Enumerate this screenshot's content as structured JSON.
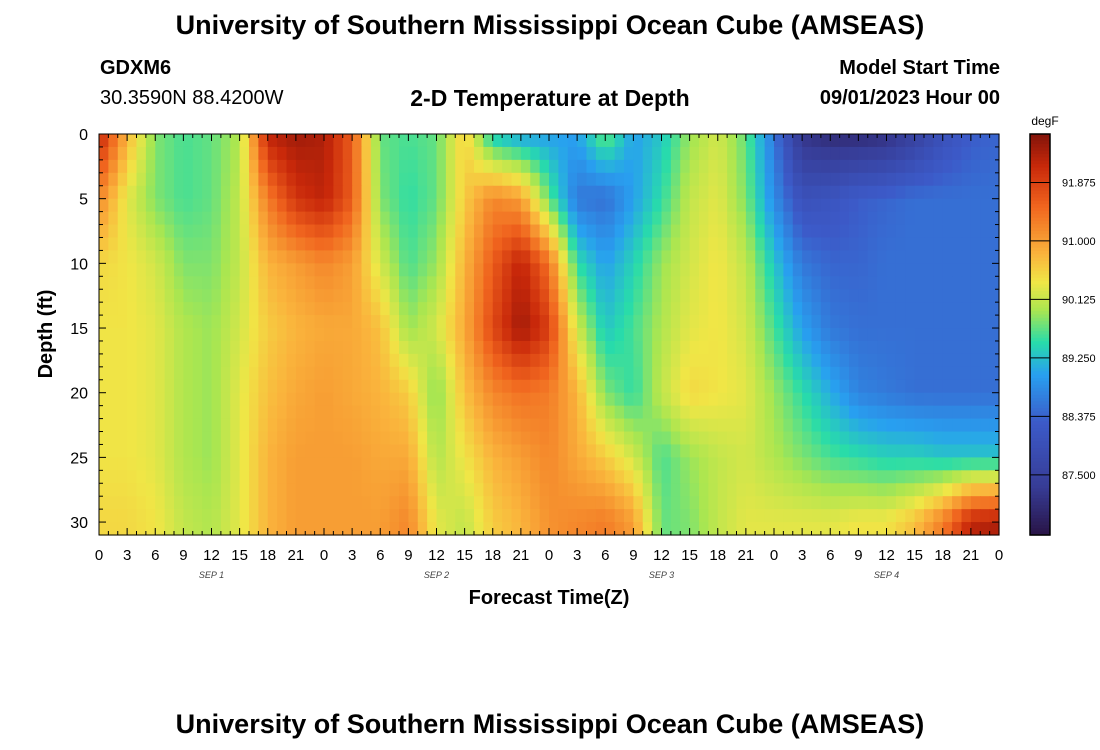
{
  "header": {
    "title": "University of Southern Mississippi Ocean Cube (AMSEAS)",
    "station": "GDXM6",
    "coords": "30.3590N  88.4200W",
    "subtitle": "2-D Temperature at Depth",
    "start_label": "Model Start Time",
    "start_value": "09/01/2023 Hour 00"
  },
  "footer": {
    "title": "University of Southern Mississippi Ocean Cube (AMSEAS)"
  },
  "chart_data": {
    "type": "heatmap",
    "xlabel": "Forecast Time(Z)",
    "ylabel": "Depth (ft)",
    "x_unit": "forecast hour",
    "xlim": [
      0,
      96
    ],
    "ylim": [
      31,
      0
    ],
    "x_tick_labels": [
      "0",
      "3",
      "6",
      "9",
      "12",
      "15",
      "18",
      "21",
      "0",
      "3",
      "6",
      "9",
      "12",
      "15",
      "18",
      "21",
      "0",
      "3",
      "6",
      "9",
      "12",
      "15",
      "18",
      "21",
      "0",
      "3",
      "6",
      "9",
      "12",
      "15",
      "18",
      "21",
      "0"
    ],
    "day_labels": [
      "SEP 1",
      "SEP 2",
      "SEP 3",
      "SEP 4"
    ],
    "y_ticks": [
      0,
      5,
      10,
      15,
      20,
      25,
      30
    ],
    "colorbar": {
      "unit": "degF",
      "range": [
        86.6,
        92.6
      ],
      "labels": [
        "91.875",
        "91.000",
        "90.125",
        "89.250",
        "88.375",
        "87.500"
      ]
    },
    "depths": [
      0,
      5,
      10,
      15,
      20,
      25,
      30
    ],
    "hours": [
      0,
      3,
      6,
      9,
      12,
      15,
      18,
      21,
      24,
      27,
      30,
      33,
      36,
      39,
      42,
      45,
      48,
      51,
      54,
      57,
      60,
      63,
      66,
      69,
      72,
      75,
      78,
      81,
      84,
      87,
      90,
      93,
      96
    ],
    "temperature": [
      [
        92.2,
        90.8,
        89.8,
        89.6,
        89.7,
        90.0,
        92.2,
        92.4,
        92.3,
        91.6,
        89.7,
        89.6,
        89.7,
        90.6,
        89.3,
        89.0,
        89.0,
        89.0,
        89.8,
        89.0,
        89.3,
        89.9,
        90.2,
        89.7,
        88.6,
        87.2,
        87.0,
        87.0,
        87.1,
        87.5,
        88.0,
        88.3,
        88.4
      ],
      [
        91.2,
        90.3,
        89.8,
        89.6,
        89.7,
        90.1,
        91.3,
        92.0,
        92.2,
        91.6,
        89.8,
        89.5,
        89.7,
        90.6,
        91.2,
        91.0,
        89.7,
        88.6,
        88.5,
        89.0,
        89.5,
        90.1,
        90.3,
        89.8,
        88.8,
        88.0,
        88.1,
        88.3,
        88.4,
        88.5,
        88.5,
        88.5,
        88.5
      ],
      [
        90.5,
        90.4,
        90.2,
        89.8,
        89.8,
        90.1,
        90.8,
        91.0,
        91.2,
        91.0,
        90.2,
        89.6,
        89.9,
        90.8,
        91.6,
        92.2,
        91.4,
        89.5,
        89.0,
        89.4,
        89.9,
        90.2,
        90.4,
        90.1,
        89.3,
        88.6,
        88.4,
        88.4,
        88.5,
        88.5,
        88.5,
        88.5,
        88.5
      ],
      [
        90.4,
        90.4,
        90.3,
        90.0,
        89.9,
        90.2,
        90.6,
        90.8,
        90.9,
        90.9,
        90.7,
        89.9,
        90.2,
        90.9,
        91.8,
        92.4,
        91.9,
        90.2,
        89.3,
        89.6,
        90.0,
        90.3,
        90.4,
        90.2,
        89.6,
        89.0,
        88.6,
        88.5,
        88.5,
        88.5,
        88.5,
        88.5,
        88.5
      ],
      [
        90.4,
        90.4,
        90.3,
        90.0,
        89.9,
        90.3,
        90.7,
        90.9,
        91.0,
        90.9,
        90.8,
        90.6,
        89.8,
        90.7,
        91.2,
        91.4,
        91.3,
        90.8,
        89.8,
        89.5,
        90.1,
        90.5,
        90.4,
        90.3,
        89.9,
        89.5,
        89.1,
        88.7,
        88.6,
        88.5,
        88.5,
        88.5,
        88.5
      ],
      [
        90.4,
        90.4,
        90.3,
        90.0,
        89.9,
        90.3,
        90.8,
        91.0,
        91.0,
        91.0,
        90.9,
        90.9,
        90.0,
        90.4,
        90.8,
        91.0,
        91.2,
        90.9,
        90.6,
        90.2,
        89.6,
        89.9,
        90.1,
        90.2,
        90.0,
        89.8,
        89.6,
        89.5,
        89.4,
        89.4,
        89.3,
        89.3,
        89.3
      ],
      [
        90.5,
        90.5,
        90.4,
        90.1,
        90.0,
        90.3,
        90.8,
        91.0,
        91.0,
        91.0,
        91.0,
        91.2,
        90.3,
        90.1,
        90.6,
        90.8,
        91.1,
        91.2,
        91.3,
        91.0,
        89.7,
        89.8,
        90.1,
        90.3,
        90.3,
        90.3,
        90.3,
        90.4,
        90.4,
        90.7,
        91.3,
        92.2,
        92.3
      ]
    ]
  }
}
